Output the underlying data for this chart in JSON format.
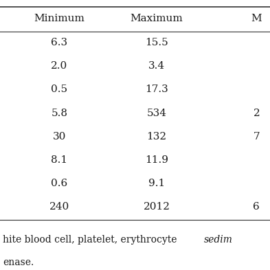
{
  "col_headers": [
    "Minimum",
    "Maximum",
    "M"
  ],
  "rows": [
    [
      "6.3",
      "15.5",
      ""
    ],
    [
      "2.0",
      "3.4",
      ""
    ],
    [
      "0.5",
      "17.3",
      ""
    ],
    [
      "5.8",
      "534",
      "2"
    ],
    [
      "30",
      "132",
      "7"
    ],
    [
      "8.1",
      "11.9",
      ""
    ],
    [
      "0.6",
      "9.1",
      ""
    ],
    [
      "240",
      "2012",
      "6"
    ]
  ],
  "footnote_line1": "hite blood cell, platelet, erythrocyte ",
  "footnote_italic": "sedim",
  "footnote_line2": "enase.",
  "bg_color": "#ffffff",
  "text_color": "#1a1a1a",
  "header_color": "#1a1a1a",
  "line_color": "#333333",
  "font_size": 11,
  "header_font_size": 11,
  "footnote_font_size": 10
}
